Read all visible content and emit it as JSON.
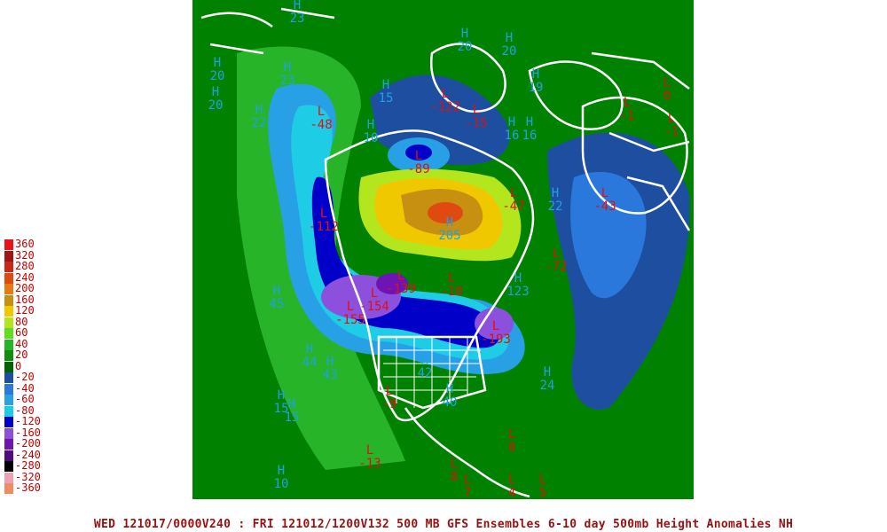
{
  "caption": "WED 121017/0000V240 : FRI 121012/1200V132  500 MB GFS Ensembles 6-10 day 500mb Height Anomalies NH",
  "legend": [
    {
      "label": "360",
      "color": "#e8141c"
    },
    {
      "label": "320",
      "color": "#a01414"
    },
    {
      "label": "280",
      "color": "#c82814"
    },
    {
      "label": "240",
      "color": "#e04a10"
    },
    {
      "label": "200",
      "color": "#e87a10"
    },
    {
      "label": "160",
      "color": "#c89010"
    },
    {
      "label": "120",
      "color": "#f0c800"
    },
    {
      "label": "80",
      "color": "#b4e61e"
    },
    {
      "label": "60",
      "color": "#64dc1e"
    },
    {
      "label": "40",
      "color": "#28b428"
    },
    {
      "label": "20",
      "color": "#108c10"
    },
    {
      "label": "0",
      "color": "#006400"
    },
    {
      "label": "-20",
      "color": "#1e4ea0"
    },
    {
      "label": "-40",
      "color": "#2a78dc"
    },
    {
      "label": "-60",
      "color": "#28a0e6"
    },
    {
      "label": "-80",
      "color": "#1ecce6"
    },
    {
      "label": "-120",
      "color": "#0000c8"
    },
    {
      "label": "-160",
      "color": "#8c50dc"
    },
    {
      "label": "-200",
      "color": "#6e14b4"
    },
    {
      "label": "-240",
      "color": "#500a82"
    },
    {
      "label": "-280",
      "color": "#000000"
    },
    {
      "label": "-320",
      "color": "#f0a0b4"
    },
    {
      "label": "-360",
      "color": "#f08c64"
    }
  ],
  "highs": [
    {
      "v": "23"
    },
    {
      "v": "20"
    },
    {
      "v": "20"
    },
    {
      "v": "23"
    },
    {
      "v": "20"
    },
    {
      "v": "22"
    },
    {
      "v": "15"
    },
    {
      "v": "10"
    },
    {
      "v": "20"
    },
    {
      "v": "19"
    },
    {
      "v": "16"
    },
    {
      "v": "16"
    },
    {
      "v": "22"
    },
    {
      "v": "205"
    },
    {
      "v": "123"
    },
    {
      "v": "45"
    },
    {
      "v": "44"
    },
    {
      "v": "43"
    },
    {
      "v": "42"
    },
    {
      "v": "40"
    },
    {
      "v": "24"
    },
    {
      "v": "15"
    },
    {
      "v": "15"
    },
    {
      "v": "10"
    }
  ],
  "lows": [
    {
      "v": "-48"
    },
    {
      "v": "-89"
    },
    {
      "v": "-122"
    },
    {
      "v": "-15"
    },
    {
      "v": "-112"
    },
    {
      "v": "-47"
    },
    {
      "v": "-43"
    },
    {
      "v": "-1"
    },
    {
      "v": "0"
    },
    {
      "v": "-1"
    },
    {
      "v": "-72"
    },
    {
      "v": "-139"
    },
    {
      "v": "-10"
    },
    {
      "v": "-154"
    },
    {
      "v": "-155"
    },
    {
      "v": "-193"
    },
    {
      "v": "-9"
    },
    {
      "v": "-13"
    },
    {
      "v": "0"
    },
    {
      "v": "8"
    },
    {
      "v": "7"
    },
    {
      "v": "4"
    },
    {
      "v": "5"
    }
  ]
}
